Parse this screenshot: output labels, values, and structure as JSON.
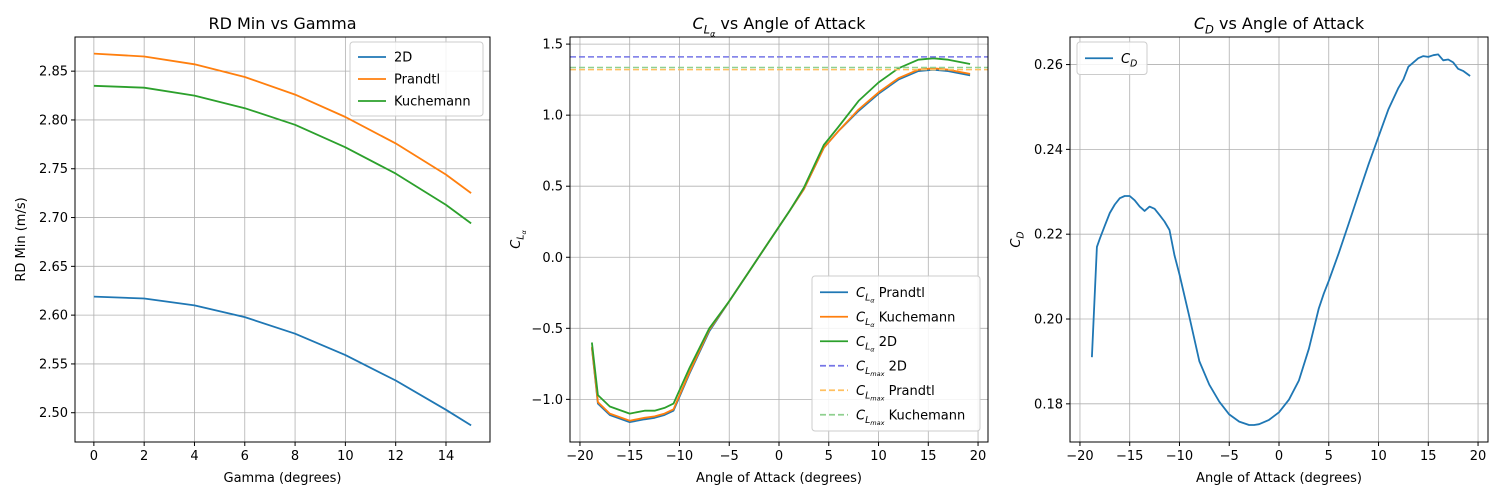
{
  "chart_data": [
    {
      "type": "line",
      "title": "RD Min vs Gamma",
      "xlabel": "Gamma (degrees)",
      "ylabel": "RD Min (m/s)",
      "xlim": [
        -0.75,
        15.75
      ],
      "ylim": [
        2.47,
        2.885
      ],
      "xticks": [
        0,
        2,
        4,
        6,
        8,
        10,
        12,
        14
      ],
      "yticks": [
        2.5,
        2.55,
        2.6,
        2.65,
        2.7,
        2.75,
        2.8,
        2.85
      ],
      "ytick_decimals": 2,
      "grid": true,
      "legend_position": "top-right",
      "series": [
        {
          "name": "2D",
          "color": "#1f77b4",
          "x": [
            0,
            2,
            4,
            6,
            8,
            10,
            12,
            14,
            15
          ],
          "y": [
            2.619,
            2.617,
            2.61,
            2.598,
            2.581,
            2.559,
            2.533,
            2.503,
            2.487
          ]
        },
        {
          "name": "Prandtl",
          "color": "#ff7f0e",
          "x": [
            0,
            2,
            4,
            6,
            8,
            10,
            12,
            14,
            15
          ],
          "y": [
            2.868,
            2.865,
            2.857,
            2.844,
            2.826,
            2.803,
            2.776,
            2.744,
            2.725
          ]
        },
        {
          "name": "Kuchemann",
          "color": "#2ca02c",
          "x": [
            0,
            2,
            4,
            6,
            8,
            10,
            12,
            14,
            15
          ],
          "y": [
            2.835,
            2.833,
            2.825,
            2.812,
            2.795,
            2.772,
            2.745,
            2.713,
            2.694
          ]
        }
      ]
    },
    {
      "type": "line",
      "title": "vs Angle of Attack",
      "title_symbol": {
        "base": "C",
        "sub": "L",
        "subsub": "α"
      },
      "xlabel": "Angle of Attack (degrees)",
      "ylabel_symbol": {
        "base": "C",
        "sub": "L",
        "subsub": "α"
      },
      "xlim": [
        -21,
        21
      ],
      "ylim": [
        -1.3,
        1.55
      ],
      "xticks": [
        -20,
        -15,
        -10,
        -5,
        0,
        5,
        10,
        15,
        20
      ],
      "yticks": [
        -1.0,
        -0.5,
        0.0,
        0.5,
        1.0,
        1.5
      ],
      "ytick_decimals": 1,
      "grid": true,
      "legend_position": "bottom-right",
      "series": [
        {
          "name": "Prandtl",
          "symbol": {
            "base": "C",
            "sub": "L",
            "subsub": "α"
          },
          "style": "solid",
          "color": "#1f77b4",
          "x": [
            -18.8,
            -18.2,
            -17,
            -15,
            -13.5,
            -12.5,
            -11.5,
            -10.6,
            -9,
            -7,
            -5,
            -3,
            -1,
            1,
            2.5,
            4.5,
            6,
            8,
            10,
            12,
            14,
            15.5,
            17,
            19.2
          ],
          "y": [
            -0.64,
            -1.03,
            -1.11,
            -1.16,
            -1.14,
            -1.13,
            -1.11,
            -1.08,
            -0.82,
            -0.52,
            -0.31,
            -0.1,
            0.11,
            0.32,
            0.48,
            0.77,
            0.89,
            1.03,
            1.15,
            1.25,
            1.31,
            1.32,
            1.31,
            1.28
          ]
        },
        {
          "name": "Kuchemann",
          "symbol": {
            "base": "C",
            "sub": "L",
            "subsub": "α"
          },
          "style": "solid",
          "color": "#ff7f0e",
          "x": [
            -18.8,
            -18.2,
            -17,
            -15,
            -13.5,
            -12.5,
            -11.5,
            -10.6,
            -9,
            -7,
            -5,
            -3,
            -1,
            1,
            2.5,
            4.5,
            6,
            8,
            10,
            12,
            14,
            15.5,
            17,
            19.2
          ],
          "y": [
            -0.63,
            -1.02,
            -1.1,
            -1.15,
            -1.13,
            -1.12,
            -1.1,
            -1.07,
            -0.81,
            -0.51,
            -0.31,
            -0.1,
            0.11,
            0.32,
            0.48,
            0.77,
            0.89,
            1.04,
            1.16,
            1.26,
            1.32,
            1.33,
            1.32,
            1.29
          ]
        },
        {
          "name": "2D",
          "symbol": {
            "base": "C",
            "sub": "L",
            "subsub": "α"
          },
          "style": "solid",
          "color": "#2ca02c",
          "x": [
            -18.8,
            -18.2,
            -17,
            -15,
            -13.5,
            -12.5,
            -11.5,
            -10.6,
            -9,
            -7,
            -5,
            -3,
            -1,
            1,
            2.5,
            4.5,
            6,
            8,
            10,
            12,
            14,
            15.5,
            17,
            19.2
          ],
          "y": [
            -0.6,
            -0.97,
            -1.05,
            -1.1,
            -1.08,
            -1.08,
            -1.06,
            -1.03,
            -0.78,
            -0.5,
            -0.31,
            -0.1,
            0.11,
            0.32,
            0.49,
            0.79,
            0.92,
            1.1,
            1.23,
            1.33,
            1.39,
            1.4,
            1.39,
            1.36
          ]
        },
        {
          "name": "2D",
          "symbol": {
            "base": "C",
            "sub": "L",
            "subsub": "max"
          },
          "style": "dashed",
          "color": "#7575e6",
          "hline": 1.41
        },
        {
          "name": "Prandtl",
          "symbol": {
            "base": "C",
            "sub": "L",
            "subsub": "max"
          },
          "style": "dashed",
          "color": "#ffc060",
          "hline": 1.32
        },
        {
          "name": "Kuchemann",
          "symbol": {
            "base": "C",
            "sub": "L",
            "subsub": "max"
          },
          "style": "dashed",
          "color": "#8fd08f",
          "hline": 1.335
        }
      ]
    },
    {
      "type": "line",
      "title": "vs Angle of Attack",
      "title_symbol": {
        "base": "C",
        "sub": "D",
        "subsub": ""
      },
      "xlabel": "Angle of Attack (degrees)",
      "ylabel_symbol": {
        "base": "C",
        "sub": "D",
        "subsub": ""
      },
      "xlim": [
        -21,
        21
      ],
      "ylim": [
        0.171,
        0.2665
      ],
      "xticks": [
        -20,
        -15,
        -10,
        -5,
        0,
        5,
        10,
        15,
        20
      ],
      "yticks": [
        0.18,
        0.2,
        0.22,
        0.24,
        0.26
      ],
      "ytick_decimals": 2,
      "grid": true,
      "legend_position": "top-left",
      "series": [
        {
          "name": "",
          "symbol": {
            "base": "C",
            "sub": "D",
            "subsub": ""
          },
          "style": "solid",
          "color": "#1f77b4",
          "x": [
            -18.8,
            -18.3,
            -18,
            -17.5,
            -17,
            -16.5,
            -16,
            -15.5,
            -15,
            -14.5,
            -14,
            -13.5,
            -13,
            -12.5,
            -12,
            -11.5,
            -11,
            -10.5,
            -10,
            -9,
            -8,
            -7,
            -6,
            -5,
            -4,
            -3,
            -2.5,
            -2,
            -1,
            0,
            1,
            2,
            3,
            4,
            4.5,
            5,
            6,
            7,
            8,
            9,
            10,
            11,
            12,
            12.5,
            13,
            13.5,
            14,
            14.5,
            15,
            15.5,
            16,
            16.5,
            17,
            17.5,
            18,
            18.5,
            19.2
          ],
          "y": [
            0.191,
            0.217,
            0.219,
            0.222,
            0.225,
            0.227,
            0.2285,
            0.229,
            0.229,
            0.228,
            0.2265,
            0.2255,
            0.2265,
            0.226,
            0.2245,
            0.223,
            0.221,
            0.215,
            0.2105,
            0.2005,
            0.19,
            0.1845,
            0.1805,
            0.1775,
            0.1758,
            0.175,
            0.175,
            0.1752,
            0.1762,
            0.178,
            0.181,
            0.1855,
            0.193,
            0.2025,
            0.206,
            0.209,
            0.2155,
            0.2225,
            0.2295,
            0.2365,
            0.243,
            0.2495,
            0.2545,
            0.2565,
            0.2595,
            0.2605,
            0.2615,
            0.262,
            0.2618,
            0.2622,
            0.2624,
            0.261,
            0.2612,
            0.2605,
            0.259,
            0.2585,
            0.2573
          ]
        }
      ]
    }
  ]
}
